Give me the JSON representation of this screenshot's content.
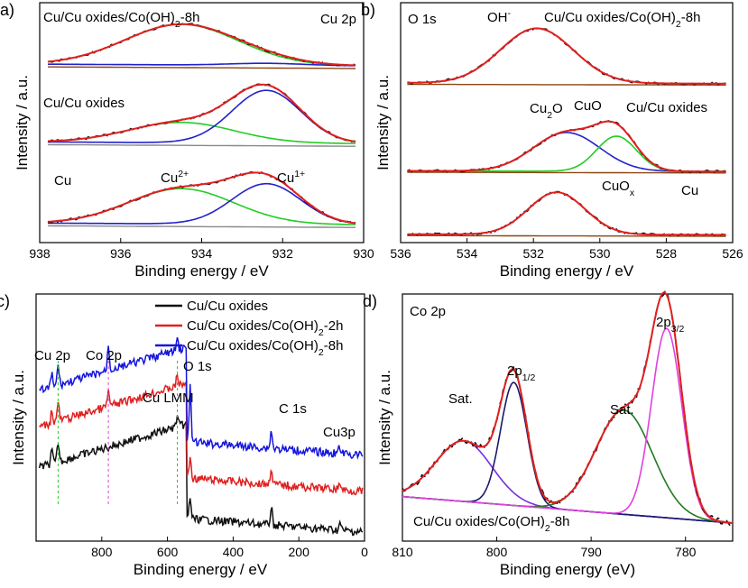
{
  "colors": {
    "envelope": "#e02020",
    "raw": "#111111",
    "cu2plus": "#22cc22",
    "cu1plus": "#2222cc",
    "background": "#8b4513",
    "gray": "#888888",
    "navy": "#1a1a6e",
    "darkgreen": "#1f7a1f",
    "magenta": "#e040e0",
    "purple": "#7a2de0",
    "blue": "#1515dd",
    "red": "#e02020",
    "black": "#000000"
  },
  "chart_data": [
    {
      "id": "a",
      "panel_label": "a)",
      "type": "line",
      "title": "Cu 2p",
      "xlabel": "Binding energy / eV",
      "ylabel": "Intensity / a.u.",
      "xlim": [
        938,
        930
      ],
      "x_reversed": true,
      "x_ticks": [
        "938",
        "936",
        "934",
        "932",
        "930"
      ],
      "stacked_spectra": [
        {
          "name": "Cu/Cu oxides/Co(OH)2-8h",
          "label_text": "Cu/Cu oxides/Co(OH)",
          "label_sub": "2",
          "label_suffix": "-8h",
          "offset": 2.35,
          "peaks": [
            {
              "component": "Cu2+",
              "center": 934.5,
              "height": 0.6,
              "width": 1.4
            },
            {
              "component": "Cu1+",
              "center": 932.4,
              "height": 0.03,
              "width": 0.9
            }
          ]
        },
        {
          "name": "Cu/Cu oxides",
          "offset": 1.2,
          "peaks": [
            {
              "component": "Cu2+",
              "center": 934.5,
              "height": 0.3,
              "width": 1.3
            },
            {
              "component": "Cu1+",
              "center": 932.4,
              "height": 0.78,
              "width": 0.85
            }
          ]
        },
        {
          "name": "Cu",
          "offset": 0.0,
          "peaks": [
            {
              "component": "Cu2+",
              "center": 934.5,
              "height": 0.52,
              "width": 1.3
            },
            {
              "component": "Cu1+",
              "center": 932.4,
              "height": 0.6,
              "width": 0.85
            }
          ]
        }
      ],
      "annotations": [
        {
          "text": "Cu",
          "sup": "2+",
          "color": "#22cc22"
        },
        {
          "text": "Cu",
          "sup": "1+",
          "color": "#2222cc"
        }
      ]
    },
    {
      "id": "b",
      "panel_label": "b)",
      "type": "line",
      "title": "O 1s",
      "xlabel": "Binding energy / eV",
      "ylabel": "Intensity / a.u.",
      "xlim": [
        536,
        526
      ],
      "x_reversed": true,
      "x_ticks": [
        "536",
        "534",
        "532",
        "530",
        "528",
        "526"
      ],
      "stacked_spectra": [
        {
          "name": "Cu/Cu oxides/Co(OH)2-8h",
          "label_text": "Cu/Cu oxides/Co(OH)",
          "label_sub": "2",
          "label_suffix": "-8h",
          "offset": 2.15,
          "peaks": [
            {
              "component": "OH-",
              "center": 531.9,
              "height": 0.78,
              "width": 1.1
            }
          ]
        },
        {
          "name": "Cu/Cu oxides",
          "offset": 0.9,
          "peaks": [
            {
              "component": "Cu2O",
              "center": 531.0,
              "height": 0.55,
              "width": 1.0
            },
            {
              "component": "CuO",
              "center": 529.5,
              "height": 0.5,
              "width": 0.6
            }
          ]
        },
        {
          "name": "Cu",
          "offset": 0.0,
          "peaks": [
            {
              "component": "CuOx",
              "center": 531.3,
              "height": 0.6,
              "width": 0.85
            }
          ]
        }
      ],
      "annotations": [
        {
          "text": "OH",
          "sup": "-",
          "color": "#000000"
        },
        {
          "text": "Cu",
          "sub": "2",
          "suffix": "O",
          "color": "#2222cc"
        },
        {
          "text": "CuO",
          "color": "#22cc22"
        },
        {
          "text": "CuO",
          "sub": "x",
          "color": "#000000"
        }
      ]
    },
    {
      "id": "c",
      "panel_label": "c)",
      "type": "line",
      "title": "",
      "xlabel": "Binding energy / eV",
      "ylabel": "Intensity / a.u.",
      "xlim": [
        1000,
        0
      ],
      "x_reversed": true,
      "x_ticks": [
        "800",
        "600",
        "400",
        "200",
        "0"
      ],
      "series": [
        {
          "name": "Cu/Cu oxides",
          "color": "#111111"
        },
        {
          "name": "Cu/Cu oxides/Co(OH)2-2h",
          "label_text": "Cu/Cu oxides/Co(OH)",
          "label_sub": "2",
          "label_suffix": "-2h",
          "color": "#e02020"
        },
        {
          "name": "Cu/Cu oxides/Co(OH)2-8h",
          "label_text": "Cu/Cu oxides/Co(OH)",
          "label_sub": "2",
          "label_suffix": "-8h",
          "color": "#1515dd"
        }
      ],
      "peak_labels": [
        "Cu 2p",
        "Co 2p",
        "Cu LMM",
        "O 1s",
        "C 1s",
        "Cu3p"
      ],
      "marker_lines": [
        {
          "position": 933,
          "color": "#22cc22"
        },
        {
          "position": 780,
          "color": "#e040e0"
        },
        {
          "position": 570,
          "color": "#22cc22"
        }
      ]
    },
    {
      "id": "d",
      "panel_label": "d)",
      "type": "line",
      "title": "Co 2p",
      "xlabel": "Binding energy (eV)",
      "ylabel": "Intensity / a.u.",
      "xlim": [
        810,
        775
      ],
      "x_reversed": true,
      "x_ticks": [
        "810",
        "800",
        "790",
        "780"
      ],
      "sample": "Cu/Cu oxides/Co(OH)2-8h",
      "sample_label": {
        "text": "Cu/Cu oxides/Co(OH)",
        "sub": "2",
        "suffix": "-8h"
      },
      "peaks": [
        {
          "name": "Sat.",
          "center": 803.5,
          "height": 0.32,
          "width": 3.0,
          "color": "#7a2de0"
        },
        {
          "name": "2p1/2",
          "center": 798.2,
          "height": 0.65,
          "width": 1.4,
          "color": "#1a1a6e"
        },
        {
          "name": "Sat.",
          "center": 786.5,
          "height": 0.55,
          "width": 3.0,
          "color": "#1f7a1f"
        },
        {
          "name": "2p3/2",
          "center": 782.0,
          "height": 1.0,
          "width": 1.6,
          "color": "#e040e0"
        }
      ],
      "annotations": [
        {
          "text": "Sat."
        },
        {
          "text": "2p",
          "sub": "1/2"
        },
        {
          "text": "Sat."
        },
        {
          "text": "2p",
          "sub": "3/2"
        }
      ]
    }
  ]
}
